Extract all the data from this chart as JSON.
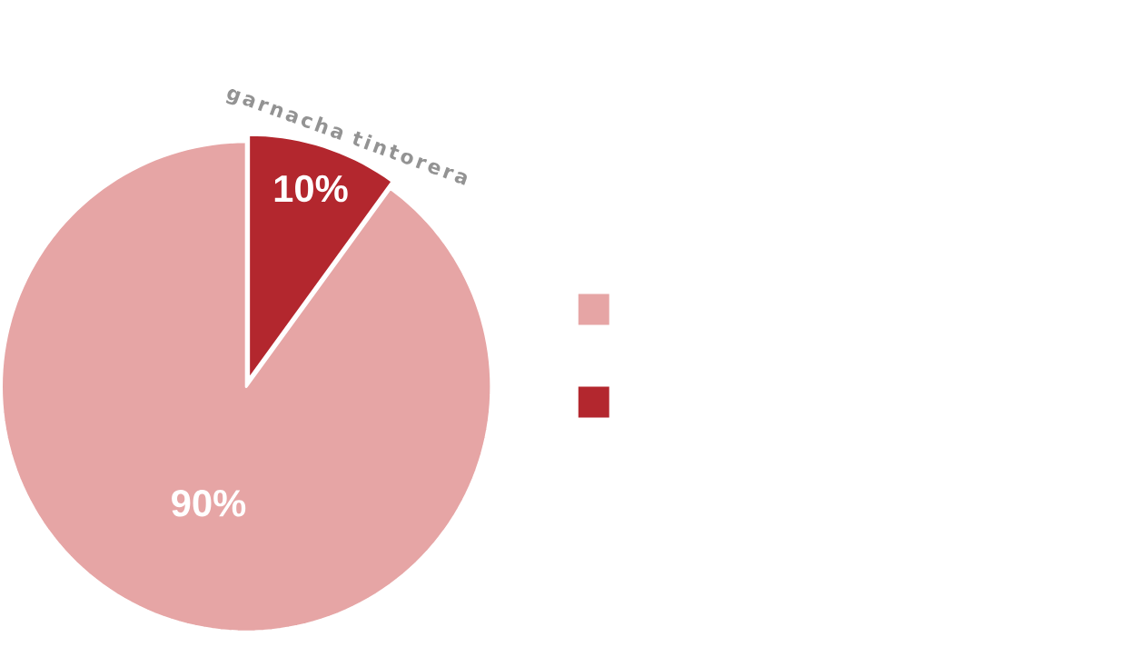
{
  "chart_data": {
    "type": "pie",
    "categories": [
      null,
      "garnacha tintorera"
    ],
    "values": [
      90,
      10
    ],
    "colors": [
      "#e6a5a5",
      "#b3272e"
    ],
    "value_labels": [
      "90%",
      "10%"
    ]
  }
}
